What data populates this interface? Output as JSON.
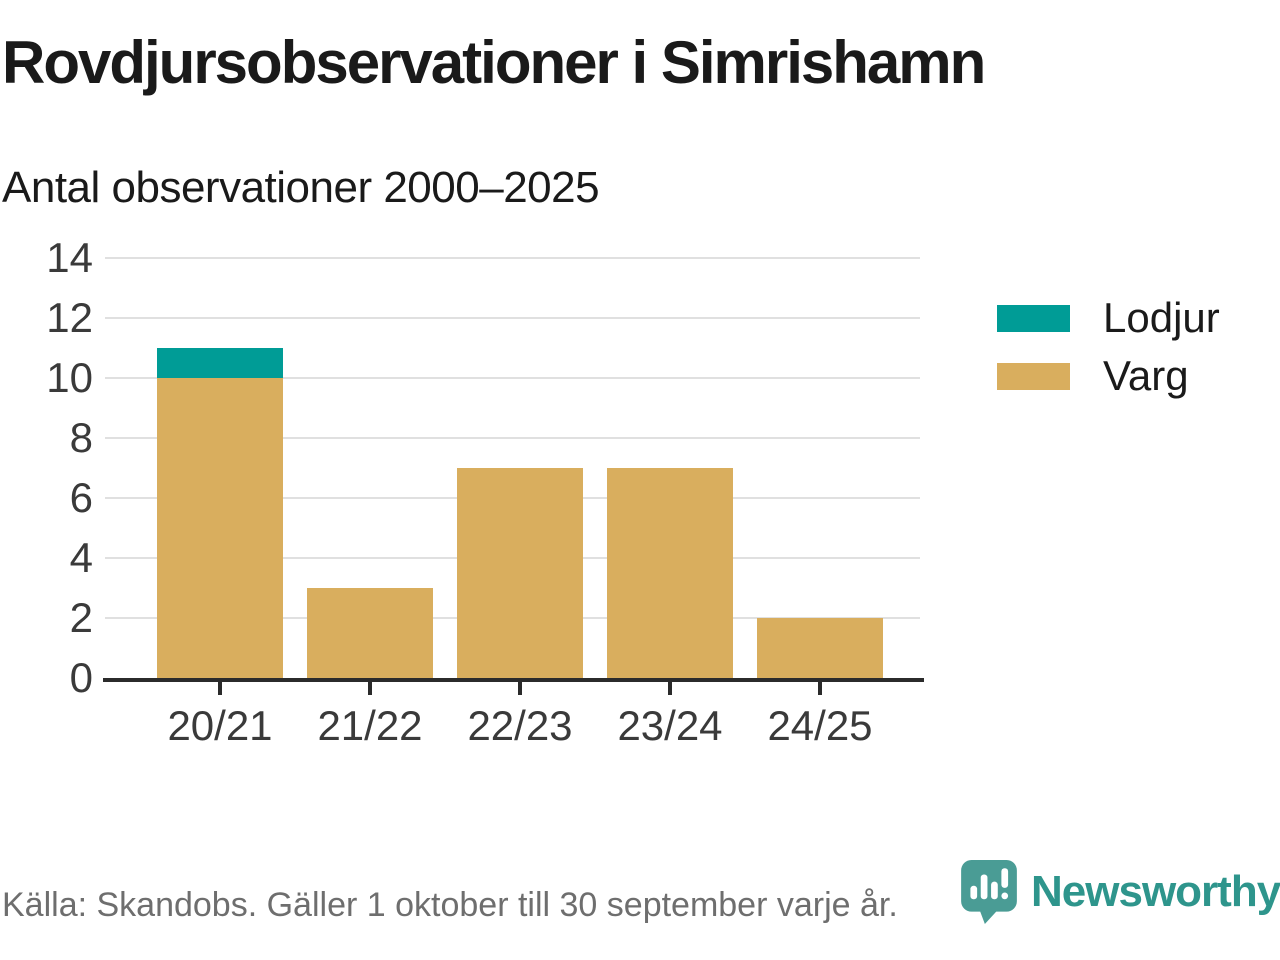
{
  "header": {
    "title": "Rovdjursobservationer i Simrishamn",
    "subtitle": "Antal observationer 2000–2025"
  },
  "chart_data": {
    "type": "bar",
    "stacked": true,
    "title": "Rovdjursobservationer i Simrishamn",
    "subtitle": "Antal observationer 2000–2025",
    "categories": [
      "20/21",
      "21/22",
      "22/23",
      "23/24",
      "24/25"
    ],
    "series": [
      {
        "name": "Lodjur",
        "color": "#009C96",
        "values": [
          1,
          0,
          0,
          0,
          0
        ]
      },
      {
        "name": "Varg",
        "color": "#D9AE5E",
        "values": [
          10,
          3,
          7,
          7,
          2
        ]
      }
    ],
    "totals": [
      11,
      3,
      7,
      7,
      2
    ],
    "xlabel": "",
    "ylabel": "",
    "ylim": [
      0,
      14
    ],
    "yticks": [
      0,
      2,
      4,
      6,
      8,
      10,
      12,
      14
    ],
    "grid": true,
    "legend_position": "right"
  },
  "footer": {
    "source": "Källa: Skandobs. Gäller 1 oktober till 30 september varje år.",
    "brand_name": "Newsworthy",
    "brand_icon": "newsworthy-speech-bubble-bar-chart-icon"
  },
  "colors": {
    "lodjur_teal": "#009C96",
    "varg_tan": "#D9AE5E",
    "axis": "#2b2b2b",
    "gridline": "#e0e0e0",
    "tick_label": "#3a3a3a",
    "heading_text": "#1a1a1a",
    "source_text": "#6e6e6e",
    "brand_text_teal": "#2e958c",
    "brand_icon_teal": "#4a9c95"
  }
}
